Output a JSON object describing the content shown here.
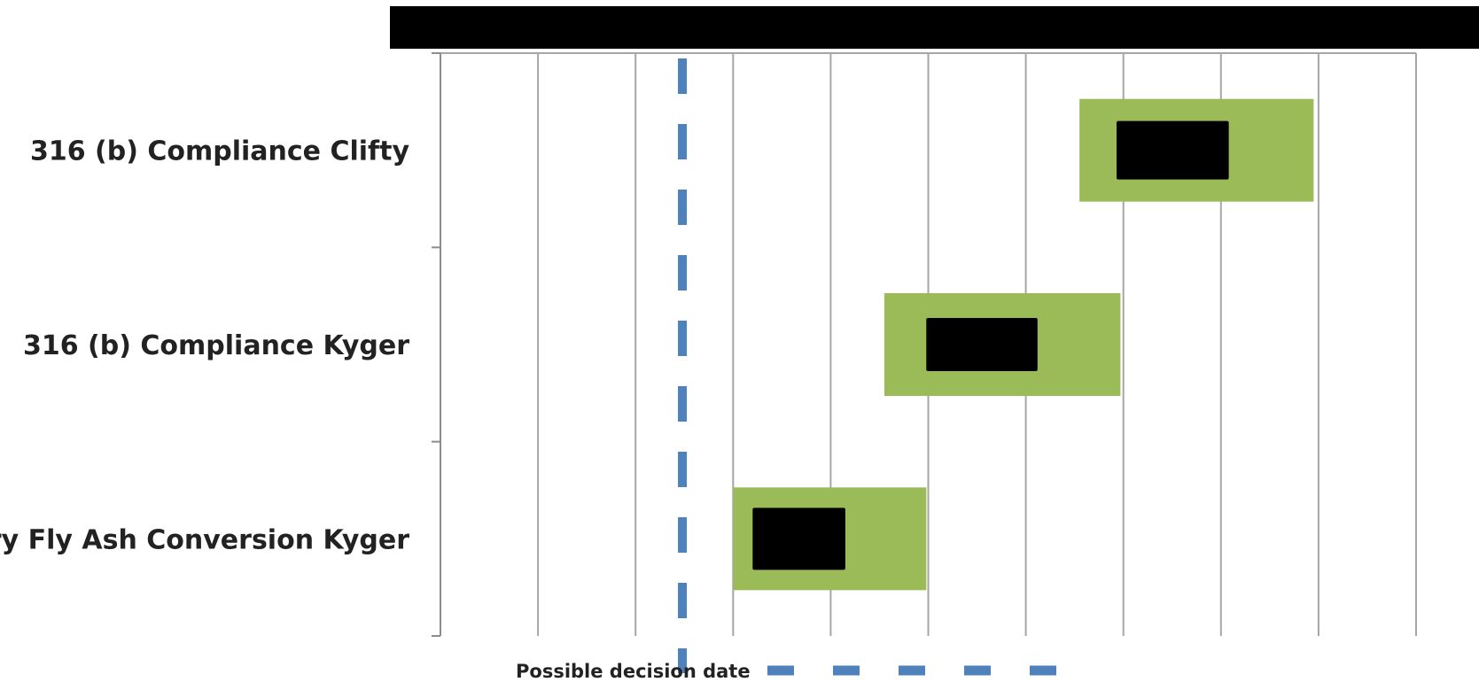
{
  "colors": {
    "bar": "#9bbb59",
    "redaction": "#000000",
    "decision_line": "#4f81bd",
    "grid": "#a6a6a6",
    "axis": "#8c8c8c"
  },
  "chart_data": {
    "type": "bar",
    "orientation": "horizontal",
    "title": "",
    "xlabel": "",
    "ylabel": "",
    "x_ticks": 10,
    "xlim": [
      0,
      10
    ],
    "grid": true,
    "categories": [
      "316 (b) Compliance Clifty",
      "316 (b) Compliance Kyger",
      "Dry Fly Ash Conversion Kyger"
    ],
    "bars": [
      {
        "category": "316 (b) Compliance Clifty",
        "start": 6.55,
        "end": 8.95
      },
      {
        "category": "316 (b) Compliance Kyger",
        "start": 4.55,
        "end": 6.97
      },
      {
        "category": "Dry Fly Ash Conversion Kyger",
        "start": 3.0,
        "end": 4.98
      }
    ],
    "redacted_overlays": [
      {
        "category": "316 (b) Compliance Clifty",
        "start": 6.93,
        "end": 8.08
      },
      {
        "category": "316 (b) Compliance Kyger",
        "start": 4.98,
        "end": 6.12
      },
      {
        "category": "Dry Fly Ash Conversion Kyger",
        "start": 3.2,
        "end": 4.15
      }
    ],
    "reference_lines": [
      {
        "name": "Possible decision date",
        "x": 2.48,
        "style": "dashed"
      }
    ],
    "legend": {
      "position": "bottom",
      "entries": [
        "Possible decision date"
      ]
    }
  }
}
